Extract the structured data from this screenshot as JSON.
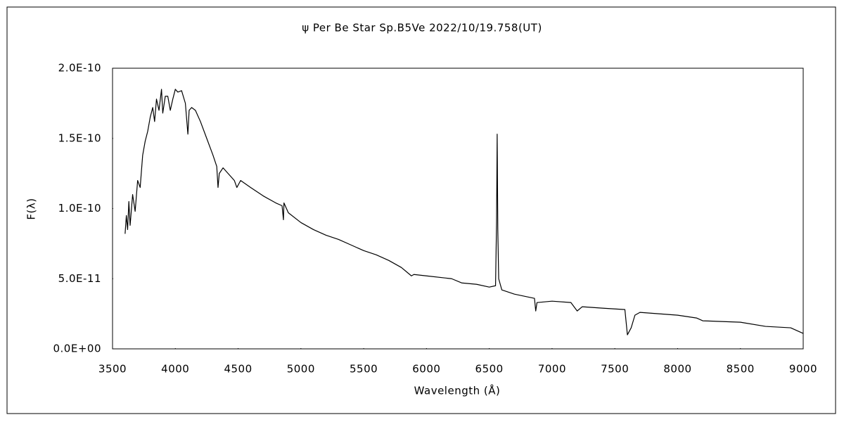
{
  "chart_data": {
    "type": "line",
    "title": "ψ Per   Be Star   Sp.B5Ve   2022/10/19.758(UT)",
    "x_label": "Wavelength (Å)",
    "y_label": "F(λ)",
    "x": [
      3600,
      3610,
      3620,
      3630,
      3640,
      3660,
      3680,
      3700,
      3720,
      3740,
      3760,
      3780,
      3800,
      3820,
      3835,
      3850,
      3870,
      3890,
      3900,
      3920,
      3940,
      3960,
      3980,
      4000,
      4020,
      4050,
      4080,
      4100,
      4110,
      4130,
      4160,
      4200,
      4250,
      4300,
      4330,
      4340,
      4350,
      4380,
      4420,
      4470,
      4490,
      4520,
      4600,
      4700,
      4800,
      4850,
      4861,
      4865,
      4900,
      5000,
      5100,
      5200,
      5300,
      5400,
      5500,
      5600,
      5700,
      5800,
      5880,
      5900,
      6000,
      6200,
      6280,
      6400,
      6500,
      6550,
      6558,
      6563,
      6568,
      6575,
      6600,
      6700,
      6860,
      6870,
      6880,
      7000,
      7150,
      7200,
      7240,
      7400,
      7580,
      7600,
      7630,
      7660,
      7700,
      8000,
      8150,
      8200,
      8500,
      8700,
      8900,
      9000
    ],
    "series": [
      {
        "name": "F(λ)",
        "color": "#000000",
        "values": [
          8.2e-11,
          9.5e-11,
          8.5e-11,
          1.05e-10,
          8.8e-11,
          1.1e-10,
          9.8e-11,
          1.2e-10,
          1.15e-10,
          1.38e-10,
          1.48e-10,
          1.55e-10,
          1.65e-10,
          1.72e-10,
          1.62e-10,
          1.78e-10,
          1.7e-10,
          1.85e-10,
          1.68e-10,
          1.8e-10,
          1.8e-10,
          1.7e-10,
          1.78e-10,
          1.85e-10,
          1.83e-10,
          1.84e-10,
          1.75e-10,
          1.53e-10,
          1.7e-10,
          1.72e-10,
          1.7e-10,
          1.62e-10,
          1.5e-10,
          1.38e-10,
          1.3e-10,
          1.15e-10,
          1.25e-10,
          1.29e-10,
          1.25e-10,
          1.2e-10,
          1.15e-10,
          1.2e-10,
          1.15e-10,
          1.09e-10,
          1.04e-10,
          1.02e-10,
          9.2e-11,
          1.04e-10,
          9.7e-11,
          9e-11,
          8.5e-11,
          8.1e-11,
          7.8e-11,
          7.4e-11,
          7e-11,
          6.7e-11,
          6.3e-11,
          5.8e-11,
          5.2e-11,
          5.3e-11,
          5.2e-11,
          5e-11,
          4.7e-11,
          4.6e-11,
          4.4e-11,
          4.5e-11,
          9e-11,
          1.53e-10,
          8.5e-11,
          5e-11,
          4.2e-11,
          3.9e-11,
          3.6e-11,
          2.7e-11,
          3.3e-11,
          3.4e-11,
          3.3e-11,
          2.7e-11,
          3e-11,
          2.9e-11,
          2.8e-11,
          1e-11,
          1.5e-11,
          2.4e-11,
          2.6e-11,
          2.4e-11,
          2.2e-11,
          2e-11,
          1.9e-11,
          1.6e-11,
          1.5e-11,
          1.1e-11
        ]
      }
    ],
    "xlim": [
      3500,
      9000
    ],
    "xticks": [
      3500,
      4000,
      4500,
      5000,
      5500,
      6000,
      6500,
      7000,
      7500,
      8000,
      8500,
      9000
    ],
    "ylim": [
      0,
      2e-10
    ],
    "yticks": [
      {
        "value": 0,
        "label": "0.0E+00"
      },
      {
        "value": 5e-11,
        "label": "5.0E-11"
      },
      {
        "value": 1e-10,
        "label": "1.0E-10"
      },
      {
        "value": 1.5e-10,
        "label": "1.5E-10"
      },
      {
        "value": 2e-10,
        "label": "2.0E-10"
      }
    ],
    "grid": false
  }
}
